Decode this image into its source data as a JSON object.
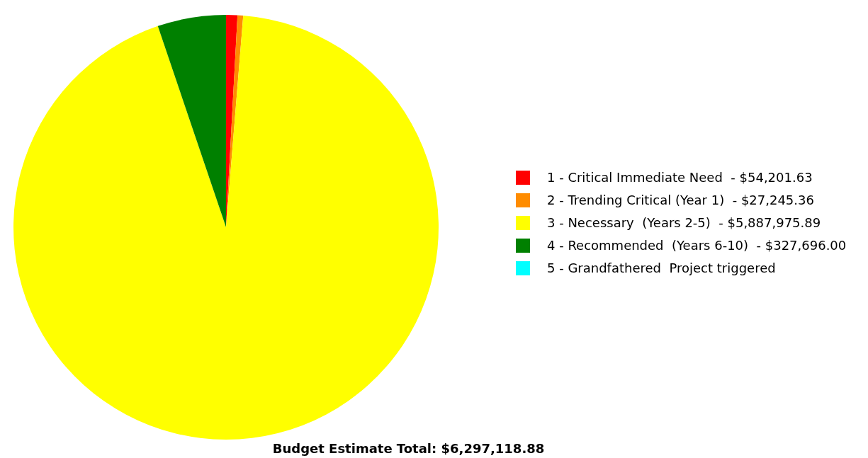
{
  "chart_data": {
    "type": "pie",
    "title": "Budget Estimate Total: $6,297,118.88",
    "categories": [
      "1 - Critical Immediate Need  - $54,201.63",
      "2 - Trending Critical (Year 1)  - $27,245.36",
      "3 - Necessary  (Years 2-5)  - $5,887,975.89",
      "4 - Recommended  (Years 6-10)  - $327,696.00",
      "5 - Grandfathered  Project triggered"
    ],
    "values": [
      0.86,
      0.43,
      93.51,
      5.2,
      0
    ],
    "colors": [
      "#ff0000",
      "#ff8c00",
      "#ffff00",
      "#008000",
      "#00ffff"
    ],
    "legend": "right"
  }
}
